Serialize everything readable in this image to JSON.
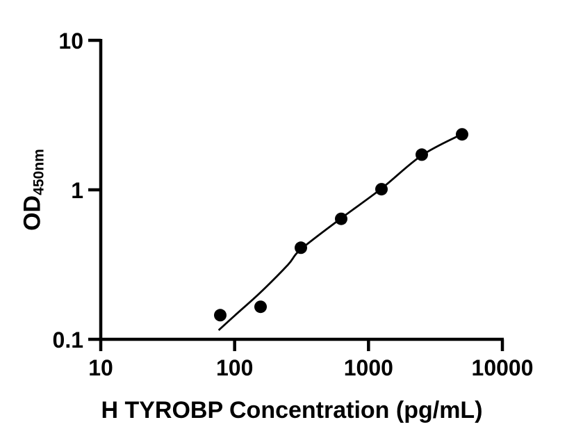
{
  "figure": {
    "background_color": "#ffffff",
    "ink_color": "#000000"
  },
  "chart_data": {
    "type": "scatter",
    "title": "",
    "grid": false,
    "legend": null,
    "x_axis": {
      "label": "H TYROBP Concentration (pg/mL)",
      "scale": "log",
      "range": [
        10,
        10000
      ],
      "ticks": [
        {
          "value": 10,
          "label": "10"
        },
        {
          "value": 100,
          "label": "100"
        },
        {
          "value": 1000,
          "label": "1000"
        },
        {
          "value": 10000,
          "label": "10000"
        }
      ]
    },
    "y_axis": {
      "label": "OD",
      "label_subscript": "450nm",
      "scale": "log",
      "range": [
        0.1,
        10
      ],
      "ticks": [
        {
          "value": 10,
          "label": "10"
        },
        {
          "value": 1,
          "label": "1"
        },
        {
          "value": 0.1,
          "label": "0.1"
        }
      ]
    },
    "series": [
      {
        "name": "standard-points",
        "marker": "filled-circle",
        "marker_color": "#000000",
        "marker_radius_px": 9,
        "x": [
          78.1,
          156.3,
          312.5,
          625,
          1250,
          2500,
          5000
        ],
        "y": [
          0.145,
          0.165,
          0.41,
          0.64,
          1.01,
          1.72,
          2.35
        ]
      }
    ],
    "fit_curve": {
      "name": "four-parameter-logistic-fit",
      "color": "#000000",
      "x": [
        76,
        100,
        156,
        250,
        312.5,
        625,
        1250,
        2500,
        5000
      ],
      "y": [
        0.115,
        0.144,
        0.206,
        0.315,
        0.4,
        0.645,
        1.02,
        1.7,
        2.36
      ]
    }
  }
}
